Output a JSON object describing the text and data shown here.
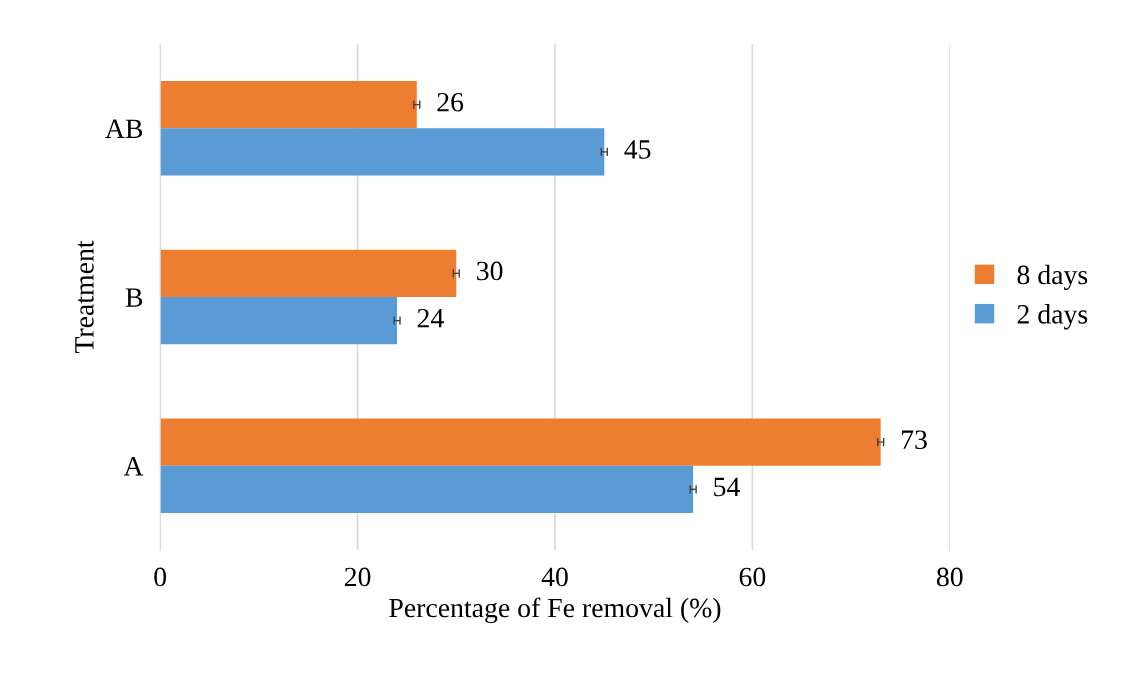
{
  "chart_data": {
    "type": "bar",
    "orientation": "horizontal",
    "xlabel": "Percentage of Fe removal (%)",
    "ylabel": "Treatment",
    "categories": [
      "AB",
      "B",
      "A"
    ],
    "series": [
      {
        "name": "8 days",
        "color": "#ed7d31",
        "values": [
          26,
          30,
          73
        ],
        "errors": [
          0.3,
          0.3,
          0.3
        ]
      },
      {
        "name": "2 days",
        "color": "#5b9bd5",
        "values": [
          45,
          24,
          54
        ],
        "errors": [
          0.3,
          0.3,
          0.3
        ]
      }
    ],
    "xlim": [
      0,
      80
    ],
    "xticks": [
      0,
      20,
      40,
      60,
      80
    ],
    "grid": "x",
    "legend": "right",
    "data_labels": true
  }
}
